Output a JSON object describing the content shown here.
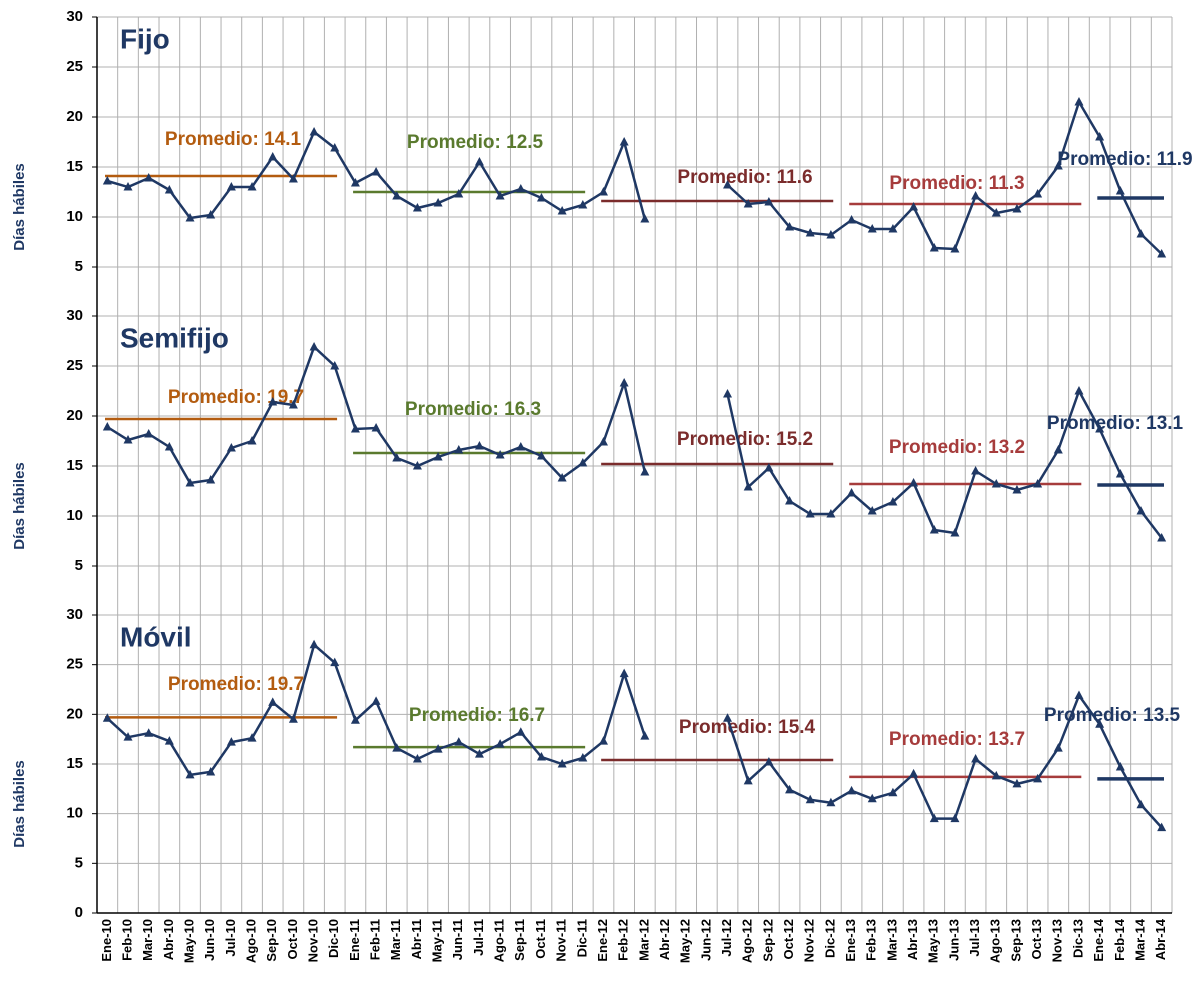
{
  "chart_data": [
    {
      "type": "line",
      "title": "Fijo",
      "y_label": "Días hábiles",
      "color": "#1f3864",
      "values": [
        13.6,
        13.0,
        13.9,
        12.7,
        9.9,
        10.2,
        13.0,
        13.0,
        16.0,
        13.8,
        18.5,
        16.9,
        13.4,
        14.5,
        12.1,
        10.9,
        11.4,
        12.3,
        15.5,
        12.1,
        12.8,
        11.9,
        10.6,
        11.2,
        12.5,
        17.5,
        9.8,
        null,
        null,
        null,
        13.2,
        11.3,
        11.5,
        9.0,
        8.4,
        8.2,
        9.7,
        8.8,
        8.8,
        11.0,
        6.9,
        6.8,
        12.1,
        10.4,
        10.8,
        12.3,
        15.1,
        21.5,
        18.0,
        12.6,
        8.3,
        6.3
      ],
      "averages": [
        {
          "label": "Promedio: 14.1",
          "value": 14.1,
          "color": "#b35c10"
        },
        {
          "label": "Promedio: 12.5",
          "value": 12.5,
          "color": "#5a7a2e"
        },
        {
          "label": "Promedio: 11.6",
          "value": 11.6,
          "color": "#7b2c2c"
        },
        {
          "label": "Promedio: 11.3",
          "value": 11.3,
          "color": "#a63c3c"
        },
        {
          "label": "Promedio: 11.9",
          "value": 11.9,
          "color": "#1f3864"
        }
      ],
      "ylim": [
        0,
        30
      ],
      "yticks": [
        5,
        10,
        15,
        20,
        25,
        30
      ],
      "grid": true
    },
    {
      "type": "line",
      "title": "Semifijo",
      "y_label": "Días hábiles",
      "color": "#1f3864",
      "values": [
        18.9,
        17.6,
        18.2,
        16.9,
        13.3,
        13.6,
        16.8,
        17.5,
        21.4,
        21.1,
        26.9,
        25.0,
        18.7,
        18.8,
        15.8,
        15.0,
        15.9,
        16.6,
        17.0,
        16.1,
        16.9,
        16.0,
        13.8,
        15.3,
        17.4,
        23.3,
        14.4,
        null,
        null,
        null,
        22.2,
        12.9,
        14.8,
        11.5,
        10.2,
        10.2,
        12.3,
        10.5,
        11.4,
        13.3,
        8.6,
        8.3,
        14.5,
        13.2,
        12.6,
        13.2,
        16.6,
        22.5,
        18.7,
        14.2,
        10.5,
        7.8
      ],
      "averages": [
        {
          "label": "Promedio: 19.7",
          "value": 19.7,
          "color": "#b35c10"
        },
        {
          "label": "Promedio: 16.3",
          "value": 16.3,
          "color": "#5a7a2e"
        },
        {
          "label": "Promedio: 15.2",
          "value": 15.2,
          "color": "#7b2c2c"
        },
        {
          "label": "Promedio: 13.2",
          "value": 13.2,
          "color": "#a63c3c"
        },
        {
          "label": "Promedio: 13.1",
          "value": 13.1,
          "color": "#1f3864"
        }
      ],
      "ylim": [
        0,
        30
      ],
      "yticks": [
        5,
        10,
        15,
        20,
        25,
        30
      ],
      "grid": true
    },
    {
      "type": "line",
      "title": "Móvil",
      "y_label": "Días hábiles",
      "color": "#1f3864",
      "categories": [
        "Ene-10",
        "Feb-10",
        "Mar-10",
        "Abr-10",
        "May-10",
        "Jun-10",
        "Jul-10",
        "Ago-10",
        "Sep-10",
        "Oct-10",
        "Nov-10",
        "Dic-10",
        "Ene-11",
        "Feb-11",
        "Mar-11",
        "Abr-11",
        "May-11",
        "Jun-11",
        "Jul-11",
        "Ago-11",
        "Sep-11",
        "Oct-11",
        "Nov-11",
        "Dic-11",
        "Ene-12",
        "Feb-12",
        "Mar-12",
        "Abr-12",
        "May-12",
        "Jun-12",
        "Jul-12",
        "Ago-12",
        "Sep-12",
        "Oct-12",
        "Nov-12",
        "Dic-12",
        "Ene-13",
        "Feb-13",
        "Mar-13",
        "Abr-13",
        "May-13",
        "Jun-13",
        "Jul-13",
        "Ago-13",
        "Sep-13",
        "Oct-13",
        "Nov-13",
        "Dic-13",
        "Ene-14",
        "Feb-14",
        "Mar-14",
        "Abr-14"
      ],
      "values": [
        19.6,
        17.7,
        18.1,
        17.3,
        13.9,
        14.2,
        17.2,
        17.6,
        21.2,
        19.5,
        27.0,
        25.2,
        19.4,
        21.3,
        16.6,
        15.5,
        16.5,
        17.2,
        16.0,
        17.0,
        18.2,
        15.7,
        15.0,
        15.6,
        17.3,
        24.1,
        17.8,
        null,
        null,
        null,
        19.6,
        13.3,
        15.2,
        12.4,
        11.4,
        11.1,
        12.3,
        11.5,
        12.1,
        14.0,
        9.5,
        9.5,
        15.5,
        13.8,
        13.0,
        13.5,
        16.6,
        21.9,
        19.0,
        14.7,
        10.9,
        8.6
      ],
      "averages": [
        {
          "label": "Promedio: 19.7",
          "value": 19.7,
          "color": "#b35c10"
        },
        {
          "label": "Promedio: 16.7",
          "value": 16.7,
          "color": "#5a7a2e"
        },
        {
          "label": "Promedio: 15.4",
          "value": 15.4,
          "color": "#7b2c2c"
        },
        {
          "label": "Promedio: 13.7",
          "value": 13.7,
          "color": "#a63c3c"
        },
        {
          "label": "Promedio: 13.5",
          "value": 13.5,
          "color": "#1f3864"
        }
      ],
      "ylim": [
        0,
        30
      ],
      "yticks": [
        0,
        5,
        10,
        15,
        20,
        25,
        30
      ],
      "grid": true
    }
  ]
}
